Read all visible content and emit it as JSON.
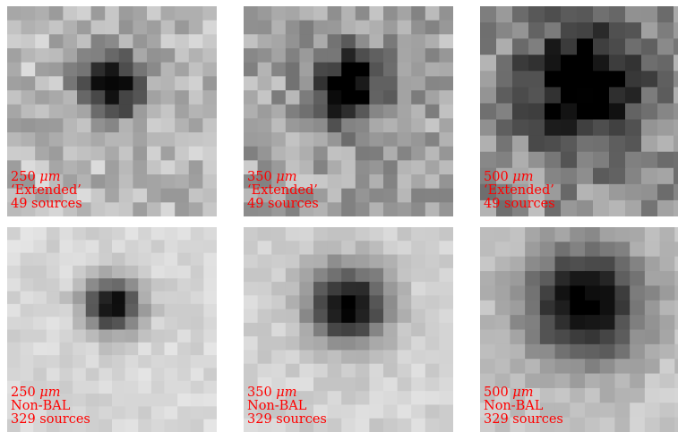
{
  "accent_text_color": "#ff0000",
  "panels": [
    {
      "id": "p1",
      "band_value": "250",
      "band_unit": "μm",
      "sample": "‘Extended’",
      "count": "49 sources"
    },
    {
      "id": "p2",
      "band_value": "350",
      "band_unit": "μm",
      "sample": "‘Extended’",
      "count": "49 sources"
    },
    {
      "id": "p3",
      "band_value": "500",
      "band_unit": "μm",
      "sample": "‘Extended’",
      "count": "49 sources"
    },
    {
      "id": "p4",
      "band_value": "250",
      "band_unit": "μm",
      "sample": "Non-BAL",
      "count": "329 sources"
    },
    {
      "id": "p5",
      "band_value": "350",
      "band_unit": "μm",
      "sample": "Non-BAL",
      "count": "329 sources"
    },
    {
      "id": "p6",
      "band_value": "500",
      "band_unit": "μm",
      "sample": "Non-BAL",
      "count": "329 sources"
    }
  ]
}
